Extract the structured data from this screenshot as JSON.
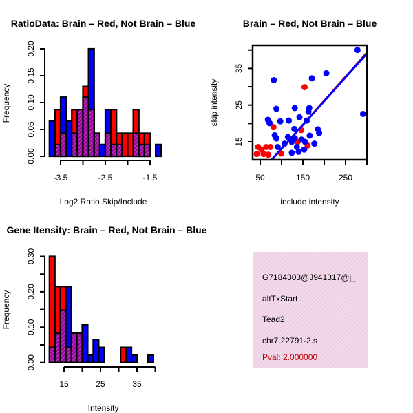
{
  "colors": {
    "red": "#ff0000",
    "blue": "#0000ff",
    "overlap": "#9900aa",
    "infobox": "#f8d8f0",
    "pval": "#c00000"
  },
  "chart_data": [
    {
      "type": "bar",
      "title": "RatioData: Brain – Red, Not Brain – Blue",
      "xlabel": "Log2 Ratio Skip/Include",
      "ylabel": "Frequency",
      "bin_start": -3.75,
      "bin_width": 0.125,
      "ylim": [
        0,
        0.2
      ],
      "xticks": [
        -3.5,
        -3.0,
        -2.5,
        -2.0,
        -1.5
      ],
      "xtick_labels": [
        "-3.5",
        "-2.5",
        "-1.5"
      ],
      "ytick_labels": [
        "0.00",
        "0.05",
        "0.10",
        "0.15",
        "0.20"
      ],
      "series": [
        {
          "name": "Brain",
          "color": "red",
          "values": [
            0,
            0.087,
            0.043,
            0,
            0.087,
            0.087,
            0.13,
            0.087,
            0.043,
            0,
            0.043,
            0.087,
            0.043,
            0.043,
            0.043,
            0.087,
            0.043,
            0.043,
            0,
            0
          ]
        },
        {
          "name": "Not Brain",
          "color": "blue",
          "values": [
            0.066,
            0.022,
            0.11,
            0.066,
            0.043,
            0.087,
            0.11,
            0.2,
            0.043,
            0.022,
            0.087,
            0.022,
            0.022,
            0,
            0,
            0.043,
            0.022,
            0.022,
            0,
            0.022
          ]
        }
      ]
    },
    {
      "type": "scatter",
      "title": "Brain – Red, Not Brain – Blue",
      "xlabel": "include intensity",
      "ylabel": "skip intensity",
      "xlim": [
        32,
        300
      ],
      "ylim": [
        10.1,
        41
      ],
      "xticks": [
        50,
        100,
        150,
        200,
        250,
        300
      ],
      "xtick_labels": [
        "50",
        "150",
        "250"
      ],
      "yticks": [
        15,
        20,
        25,
        30,
        35,
        40
      ],
      "ytick_labels": [
        "15",
        "25",
        "35"
      ],
      "series": [
        {
          "name": "Brain",
          "color": "red",
          "points": [
            [
              154,
              29.9
            ],
            [
              81,
              19
            ],
            [
              146,
              18.2
            ],
            [
              138,
              15
            ],
            [
              161,
              14
            ],
            [
              45,
              13.6
            ],
            [
              64,
              13.6
            ],
            [
              74,
              13.6
            ],
            [
              53,
              12.9
            ],
            [
              42,
              11.7
            ],
            [
              58,
              11.7
            ],
            [
              69,
              11.5
            ],
            [
              99,
              11.8
            ]
          ],
          "fit": {
            "intercept": 0.0,
            "slope": 0.131
          }
        },
        {
          "name": "Not Brain",
          "color": "blue",
          "points": [
            [
              278,
              40
            ],
            [
              291,
              22.6
            ],
            [
              82,
              31.8
            ],
            [
              171,
              32.3
            ],
            [
              205,
              33.7
            ],
            [
              88,
              24
            ],
            [
              131,
              24.2
            ],
            [
              165,
              24.2
            ],
            [
              163,
              23.2
            ],
            [
              142,
              21.7
            ],
            [
              68,
              21
            ],
            [
              72,
              20.1
            ],
            [
              97,
              20.6
            ],
            [
              117,
              20.8
            ],
            [
              159,
              20.8
            ],
            [
              130,
              18.5
            ],
            [
              185,
              18.4
            ],
            [
              188,
              17.4
            ],
            [
              84,
              16.8
            ],
            [
              166,
              16.7
            ],
            [
              88,
              15.9
            ],
            [
              115,
              16.3
            ],
            [
              177,
              14.5
            ],
            [
              124,
              15
            ],
            [
              131,
              16
            ],
            [
              147,
              15.6
            ],
            [
              155,
              15
            ],
            [
              91,
              13.6
            ],
            [
              107,
              14.5
            ],
            [
              124,
              12
            ],
            [
              140,
              12.3
            ],
            [
              153,
              12.9
            ],
            [
              136,
              13.6
            ]
          ],
          "fit": {
            "intercept": 0.2,
            "slope": 0.1295
          }
        }
      ]
    },
    {
      "type": "bar",
      "title": "Gene Itensity: Brain – Red, Not Brain – Blue",
      "xlabel": "Intensity",
      "ylabel": "Frequency",
      "bin_start": 11,
      "bin_width": 1.5,
      "ylim": [
        0,
        0.3
      ],
      "xticks": [
        15,
        20,
        25,
        30,
        35,
        40
      ],
      "xtick_labels": [
        "15",
        "25",
        "35"
      ],
      "ytick_labels": [
        "0.00",
        "0.10",
        "0.20",
        "0.30"
      ],
      "series": [
        {
          "name": "Brain",
          "color": "red",
          "values": [
            0.3,
            0.215,
            0.215,
            0.043,
            0.083,
            0.083,
            0,
            0,
            0,
            0,
            0,
            0,
            0,
            0.043,
            0,
            0,
            0,
            0,
            0
          ]
        },
        {
          "name": "Not Brain",
          "color": "blue",
          "values": [
            0.043,
            0.083,
            0.148,
            0.215,
            0.083,
            0.083,
            0.107,
            0.021,
            0.065,
            0.043,
            0,
            0,
            0,
            0,
            0.043,
            0.021,
            0,
            0,
            0.021
          ]
        }
      ]
    }
  ],
  "info": {
    "id": "G7184303@J941317@j_",
    "event_type": "altTxStart",
    "gene": "Tead2",
    "location": "chr7.22791-2.s",
    "pval": "Pval: 2.000000"
  }
}
